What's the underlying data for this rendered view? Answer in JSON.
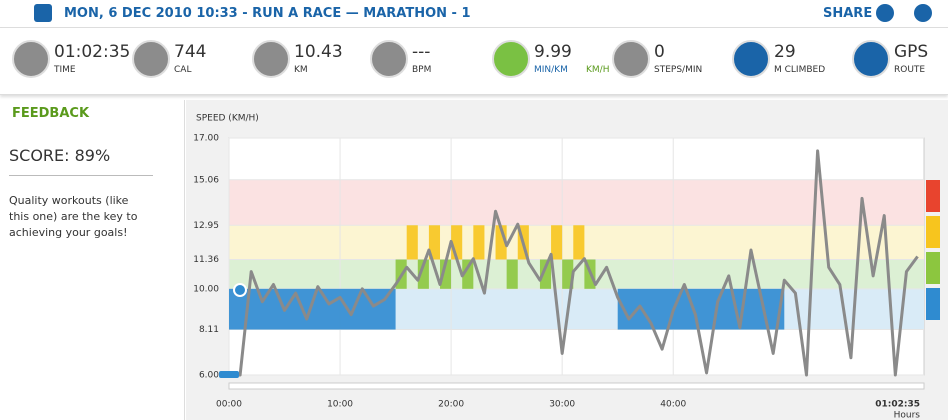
{
  "header": {
    "title": "MON, 6 DEC 2010 10:33 - RUN A RACE — MARATHON - 1",
    "share": "SHARE"
  },
  "stats": [
    {
      "value": "01:02:35",
      "unit": "TIME"
    },
    {
      "value": "744",
      "unit": "CAL"
    },
    {
      "value": "10.43",
      "unit": "KM"
    },
    {
      "value": "---",
      "unit": "BPM"
    },
    {
      "value": "9.99",
      "unit": "MIN/KM",
      "unit2": "KM/H"
    },
    {
      "value": "0",
      "unit": "STEPS/MIN"
    },
    {
      "value": "29",
      "unit": "M CLIMBED"
    },
    {
      "value": "GPS",
      "unit": "ROUTE"
    }
  ],
  "feedback": {
    "title": "FEEDBACK",
    "score": "SCORE: 89%",
    "text": "Quality workouts (like this one) are the key to achieving your goals!"
  },
  "chart_data": {
    "type": "line",
    "title": "SPEED (KM/H)",
    "color": "#8a8a8a",
    "x": [
      0,
      1,
      2,
      3,
      4,
      5,
      6,
      7,
      8,
      9,
      10,
      11,
      12,
      13,
      14,
      15,
      16,
      17,
      18,
      19,
      20,
      21,
      22,
      23,
      24,
      25,
      26,
      27,
      28,
      29,
      30,
      31,
      32,
      33,
      34,
      35,
      36,
      37,
      38,
      39,
      40,
      41,
      42,
      43,
      44,
      45,
      46,
      47,
      48,
      49,
      50,
      51,
      52,
      53,
      54,
      55,
      56,
      57,
      58,
      59,
      60,
      61,
      62
    ],
    "values": [
      6,
      6,
      10.8,
      9.4,
      10.2,
      9.0,
      9.8,
      8.6,
      10.1,
      9.3,
      9.6,
      8.8,
      10.0,
      9.2,
      9.5,
      10.2,
      11.0,
      10.4,
      11.8,
      10.2,
      12.2,
      10.6,
      11.4,
      9.8,
      13.6,
      12.0,
      13.0,
      11.2,
      10.4,
      11.6,
      7.0,
      10.8,
      11.4,
      10.2,
      11.0,
      9.6,
      8.6,
      9.2,
      8.4,
      7.2,
      9.0,
      10.2,
      8.8,
      6.1,
      9.4,
      10.6,
      8.2,
      11.8,
      9.4,
      7.0,
      10.4,
      9.8,
      6.0,
      16.4,
      11.0,
      10.2,
      6.8,
      14.2,
      10.6,
      13.4,
      6.0,
      10.8,
      11.5
    ],
    "xlim": [
      0,
      62.58
    ],
    "xticks": [
      {
        "value": 0,
        "label": "00:00"
      },
      {
        "value": 10,
        "label": "10:00"
      },
      {
        "value": 20,
        "label": "20:00"
      },
      {
        "value": 30,
        "label": "30:00"
      },
      {
        "value": 40,
        "label": "40:00"
      }
    ],
    "end_label": "01:02:35",
    "end_unit": "Hours",
    "ylim": [
      6,
      17
    ],
    "yticks": [
      {
        "value": 6,
        "label": "6.00"
      },
      8.11,
      {
        "value": 10,
        "label": "10.00"
      },
      11.36,
      12.95,
      15.06,
      {
        "value": 17,
        "label": "17.00"
      }
    ],
    "zones": [
      {
        "from": 8.11,
        "to": 10,
        "color": "#d9ebf7"
      },
      {
        "from": 10,
        "to": 11.36,
        "color": "#dcf0d4"
      },
      {
        "from": 11.36,
        "to": 12.95,
        "color": "#fcf5d2"
      },
      {
        "from": 12.95,
        "to": 15.06,
        "color": "#fbe2e2"
      }
    ],
    "blocks": [
      {
        "x0": 0,
        "x1": 15,
        "y0": 8.11,
        "y1": 10,
        "color": "#2f8bd0"
      },
      {
        "x0": 15,
        "x1": 16,
        "y0": 10,
        "y1": 11.36,
        "color": "#8cc63f"
      },
      {
        "x0": 16,
        "x1": 17,
        "y0": 11.36,
        "y1": 12.95,
        "color": "#f7c51e"
      },
      {
        "x0": 17,
        "x1": 18,
        "y0": 10,
        "y1": 11.36,
        "color": "#8cc63f"
      },
      {
        "x0": 18,
        "x1": 19,
        "y0": 11.36,
        "y1": 12.95,
        "color": "#f7c51e"
      },
      {
        "x0": 19,
        "x1": 20,
        "y0": 10,
        "y1": 11.36,
        "color": "#8cc63f"
      },
      {
        "x0": 20,
        "x1": 21,
        "y0": 11.36,
        "y1": 12.95,
        "color": "#f7c51e"
      },
      {
        "x0": 21,
        "x1": 22,
        "y0": 10,
        "y1": 11.36,
        "color": "#8cc63f"
      },
      {
        "x0": 22,
        "x1": 23,
        "y0": 11.36,
        "y1": 12.95,
        "color": "#f7c51e"
      },
      {
        "x0": 24,
        "x1": 25,
        "y0": 11.36,
        "y1": 12.95,
        "color": "#f7c51e"
      },
      {
        "x0": 25,
        "x1": 26,
        "y0": 10,
        "y1": 11.36,
        "color": "#8cc63f"
      },
      {
        "x0": 26,
        "x1": 27,
        "y0": 11.36,
        "y1": 12.95,
        "color": "#f7c51e"
      },
      {
        "x0": 28,
        "x1": 29,
        "y0": 10,
        "y1": 11.36,
        "color": "#8cc63f"
      },
      {
        "x0": 29,
        "x1": 30,
        "y0": 11.36,
        "y1": 12.95,
        "color": "#f7c51e"
      },
      {
        "x0": 30,
        "x1": 31,
        "y0": 10,
        "y1": 11.36,
        "color": "#8cc63f"
      },
      {
        "x0": 31,
        "x1": 32,
        "y0": 11.36,
        "y1": 12.95,
        "color": "#f7c51e"
      },
      {
        "x0": 32,
        "x1": 33,
        "y0": 10,
        "y1": 11.36,
        "color": "#8cc63f"
      },
      {
        "x0": 35,
        "x1": 50,
        "y0": 8.11,
        "y1": 10,
        "color": "#2f8bd0"
      }
    ]
  }
}
